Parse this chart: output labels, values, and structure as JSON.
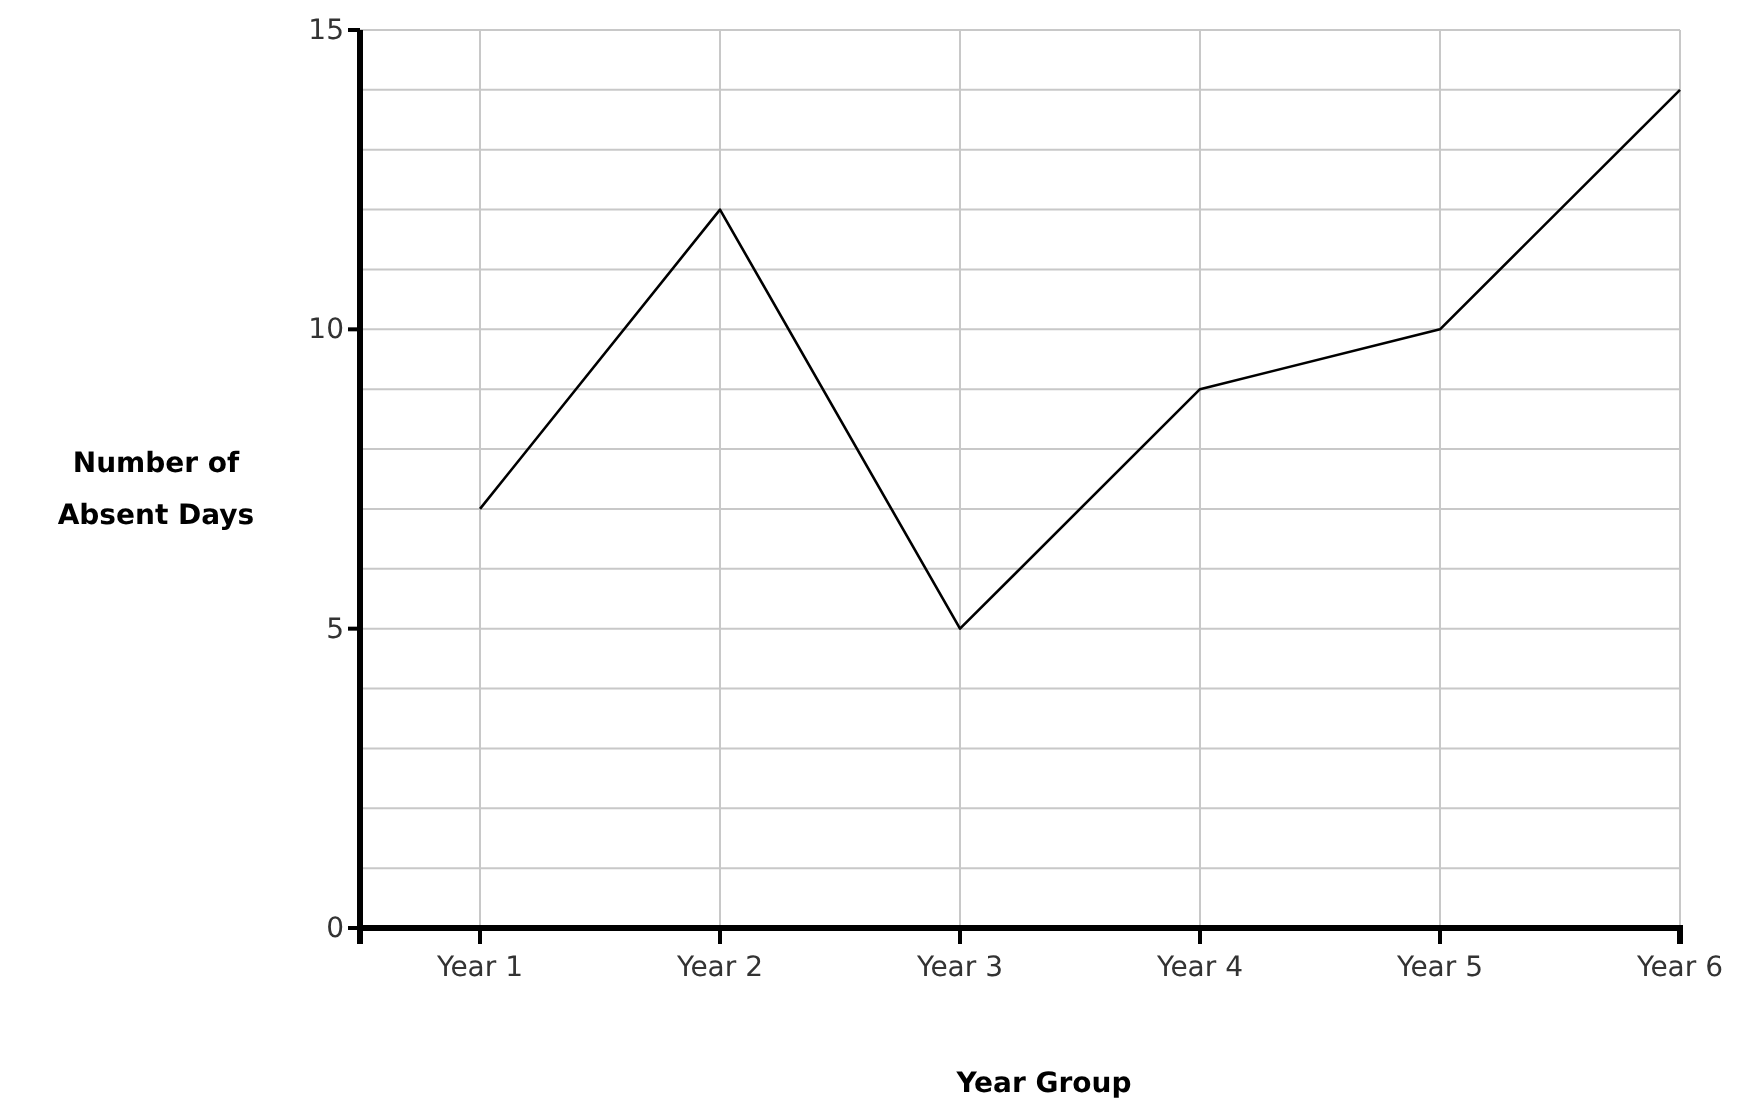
{
  "chart_data": {
    "type": "line",
    "xlabel": "Year Group",
    "ylabel": "Number of Absent Days",
    "categories": [
      "Year 1",
      "Year 2",
      "Year 3",
      "Year 4",
      "Year 5",
      "Year 6"
    ],
    "series": [
      {
        "color": "#000000",
        "values": [
          7,
          12,
          5,
          9,
          10,
          14
        ]
      }
    ],
    "ylim": [
      0,
      15
    ],
    "yticks": [
      0,
      {
        "value": 1,
        "label": null
      },
      {
        "value": 2,
        "label": null
      },
      {
        "value": 3,
        "label": null
      },
      {
        "value": 4,
        "label": null
      },
      5,
      {
        "value": 6,
        "label": null
      },
      {
        "value": 7,
        "label": null
      },
      {
        "value": 8,
        "label": null
      },
      {
        "value": 9,
        "label": null
      },
      10,
      {
        "value": 11,
        "label": null
      },
      {
        "value": 12,
        "label": null
      },
      {
        "value": 13,
        "label": null
      },
      {
        "value": 14,
        "label": null
      },
      15
    ],
    "grid": true,
    "marker": "none",
    "line_style": "solid"
  }
}
